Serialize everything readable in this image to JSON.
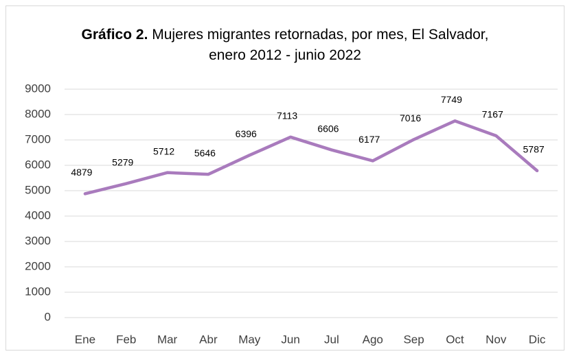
{
  "chart_data": {
    "type": "line",
    "title_prefix": "Gráfico 2.",
    "title": "Mujeres migrantes retornadas, por mes, El Salvador, enero 2012 - junio 2022",
    "categories": [
      "Ene",
      "Feb",
      "Mar",
      "Abr",
      "May",
      "Jun",
      "Jul",
      "Ago",
      "Sep",
      "Oct",
      "Nov",
      "Dic"
    ],
    "series": [
      {
        "name": "Mujeres migrantes retornadas",
        "color": "#a97bbd",
        "values": [
          4879,
          5279,
          5712,
          5646,
          6396,
          7113,
          6606,
          6177,
          7016,
          7749,
          7167,
          5787
        ]
      }
    ],
    "ylim": [
      0,
      9000
    ],
    "yticks": [
      0,
      1000,
      2000,
      3000,
      4000,
      5000,
      6000,
      7000,
      8000,
      9000
    ],
    "grid": true,
    "data_labels": true
  }
}
